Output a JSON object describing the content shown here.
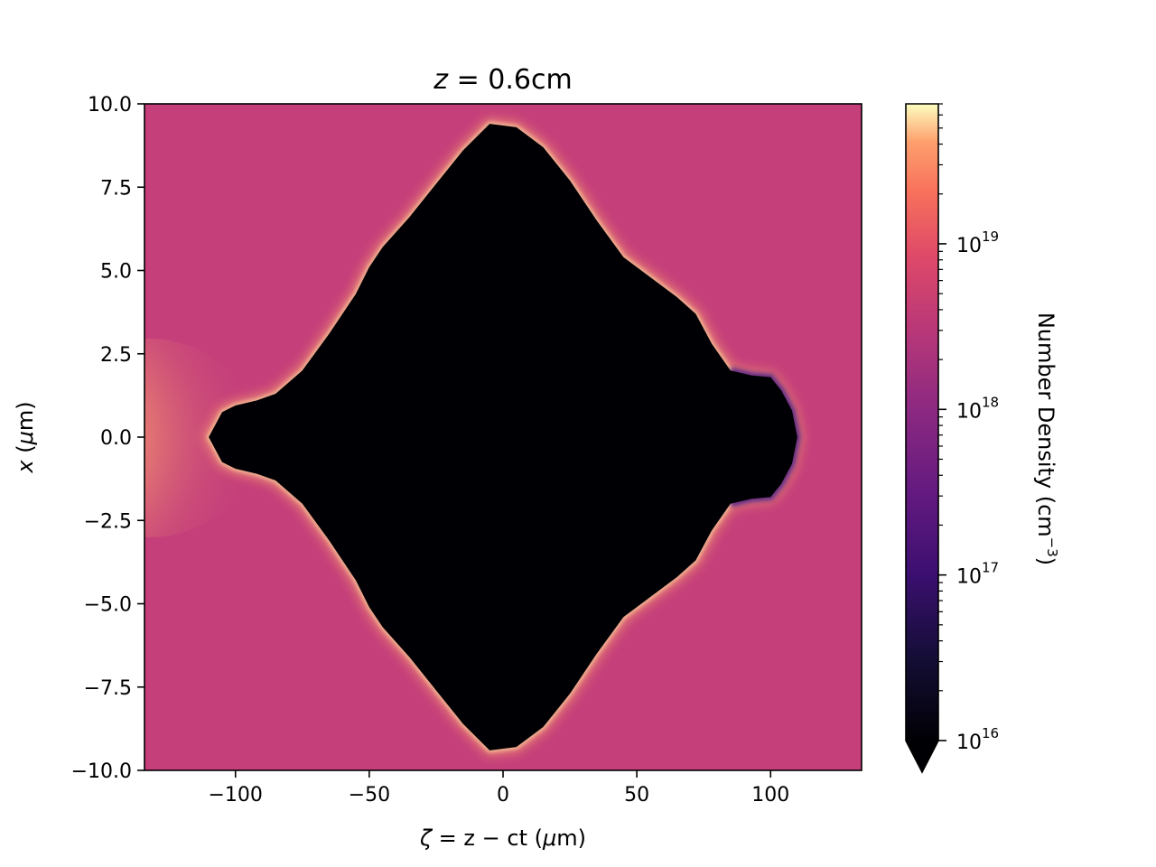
{
  "chart_data": {
    "type": "heatmap",
    "title_prefix": "z",
    "title_eq": " = ",
    "title_value": "0.6cm",
    "xlabel_sym": "ζ",
    "xlabel_rest": " = z − ct (",
    "xlabel_mu": "μ",
    "xlabel_unit": "m)",
    "ylabel_sym": "x",
    "ylabel_open": " (",
    "ylabel_mu": "μ",
    "ylabel_unit": "m)",
    "xlim": [
      -134,
      134
    ],
    "ylim": [
      -10,
      10
    ],
    "x_ticks": [
      {
        "value": -100,
        "label": "−100"
      },
      {
        "value": -50,
        "label": "−50"
      },
      {
        "value": 0,
        "label": "0"
      },
      {
        "value": 50,
        "label": "50"
      },
      {
        "value": 100,
        "label": "100"
      }
    ],
    "y_ticks": [
      {
        "value": 10,
        "label": "10.0"
      },
      {
        "value": 7.5,
        "label": "7.5"
      },
      {
        "value": 5,
        "label": "5.0"
      },
      {
        "value": 2.5,
        "label": "2.5"
      },
      {
        "value": 0,
        "label": "0.0"
      },
      {
        "value": -2.5,
        "label": "−2.5"
      },
      {
        "value": -5,
        "label": "−5.0"
      },
      {
        "value": -7.5,
        "label": "−7.5"
      },
      {
        "value": -10,
        "label": "−10.0"
      }
    ],
    "colorbar": {
      "label_main": "Number Density (cm",
      "label_exp": "−3",
      "label_close": ")",
      "scale": "log",
      "range": [
        1e+16,
        7e+19
      ],
      "extend": "min",
      "colormap": "magma",
      "ticks": [
        {
          "value": 1e+16,
          "base": "10",
          "exp": "16"
        },
        {
          "value": 1e+17,
          "base": "10",
          "exp": "17"
        },
        {
          "value": 1e+18,
          "base": "10",
          "exp": "18"
        },
        {
          "value": 1e+19,
          "base": "10",
          "exp": "19"
        }
      ]
    },
    "background_density": 1.6e+18,
    "colors": {
      "background": "#c5407a",
      "cavity": "#000004",
      "sheath": "#fca56c",
      "hot": "#fde3a8",
      "edge_purple": "#5a1a82"
    },
    "cavity_upper_boundary": [
      {
        "x": -110,
        "y": 0.0
      },
      {
        "x": -105,
        "y": 0.75
      },
      {
        "x": -100,
        "y": 0.95
      },
      {
        "x": -92,
        "y": 1.1
      },
      {
        "x": -85,
        "y": 1.3
      },
      {
        "x": -75,
        "y": 2.0
      },
      {
        "x": -65,
        "y": 3.1
      },
      {
        "x": -55,
        "y": 4.3
      },
      {
        "x": -50,
        "y": 5.1
      },
      {
        "x": -45,
        "y": 5.7
      },
      {
        "x": -35,
        "y": 6.6
      },
      {
        "x": -25,
        "y": 7.6
      },
      {
        "x": -15,
        "y": 8.6
      },
      {
        "x": -5,
        "y": 9.4
      },
      {
        "x": 5,
        "y": 9.3
      },
      {
        "x": 15,
        "y": 8.7
      },
      {
        "x": 25,
        "y": 7.7
      },
      {
        "x": 35,
        "y": 6.5
      },
      {
        "x": 45,
        "y": 5.4
      },
      {
        "x": 55,
        "y": 4.8
      },
      {
        "x": 65,
        "y": 4.2
      },
      {
        "x": 72,
        "y": 3.7
      },
      {
        "x": 78,
        "y": 2.8
      },
      {
        "x": 85,
        "y": 2.0
      },
      {
        "x": 93,
        "y": 1.85
      },
      {
        "x": 100,
        "y": 1.8
      },
      {
        "x": 104,
        "y": 1.4
      },
      {
        "x": 108,
        "y": 0.8
      },
      {
        "x": 110,
        "y": 0.0
      }
    ]
  }
}
